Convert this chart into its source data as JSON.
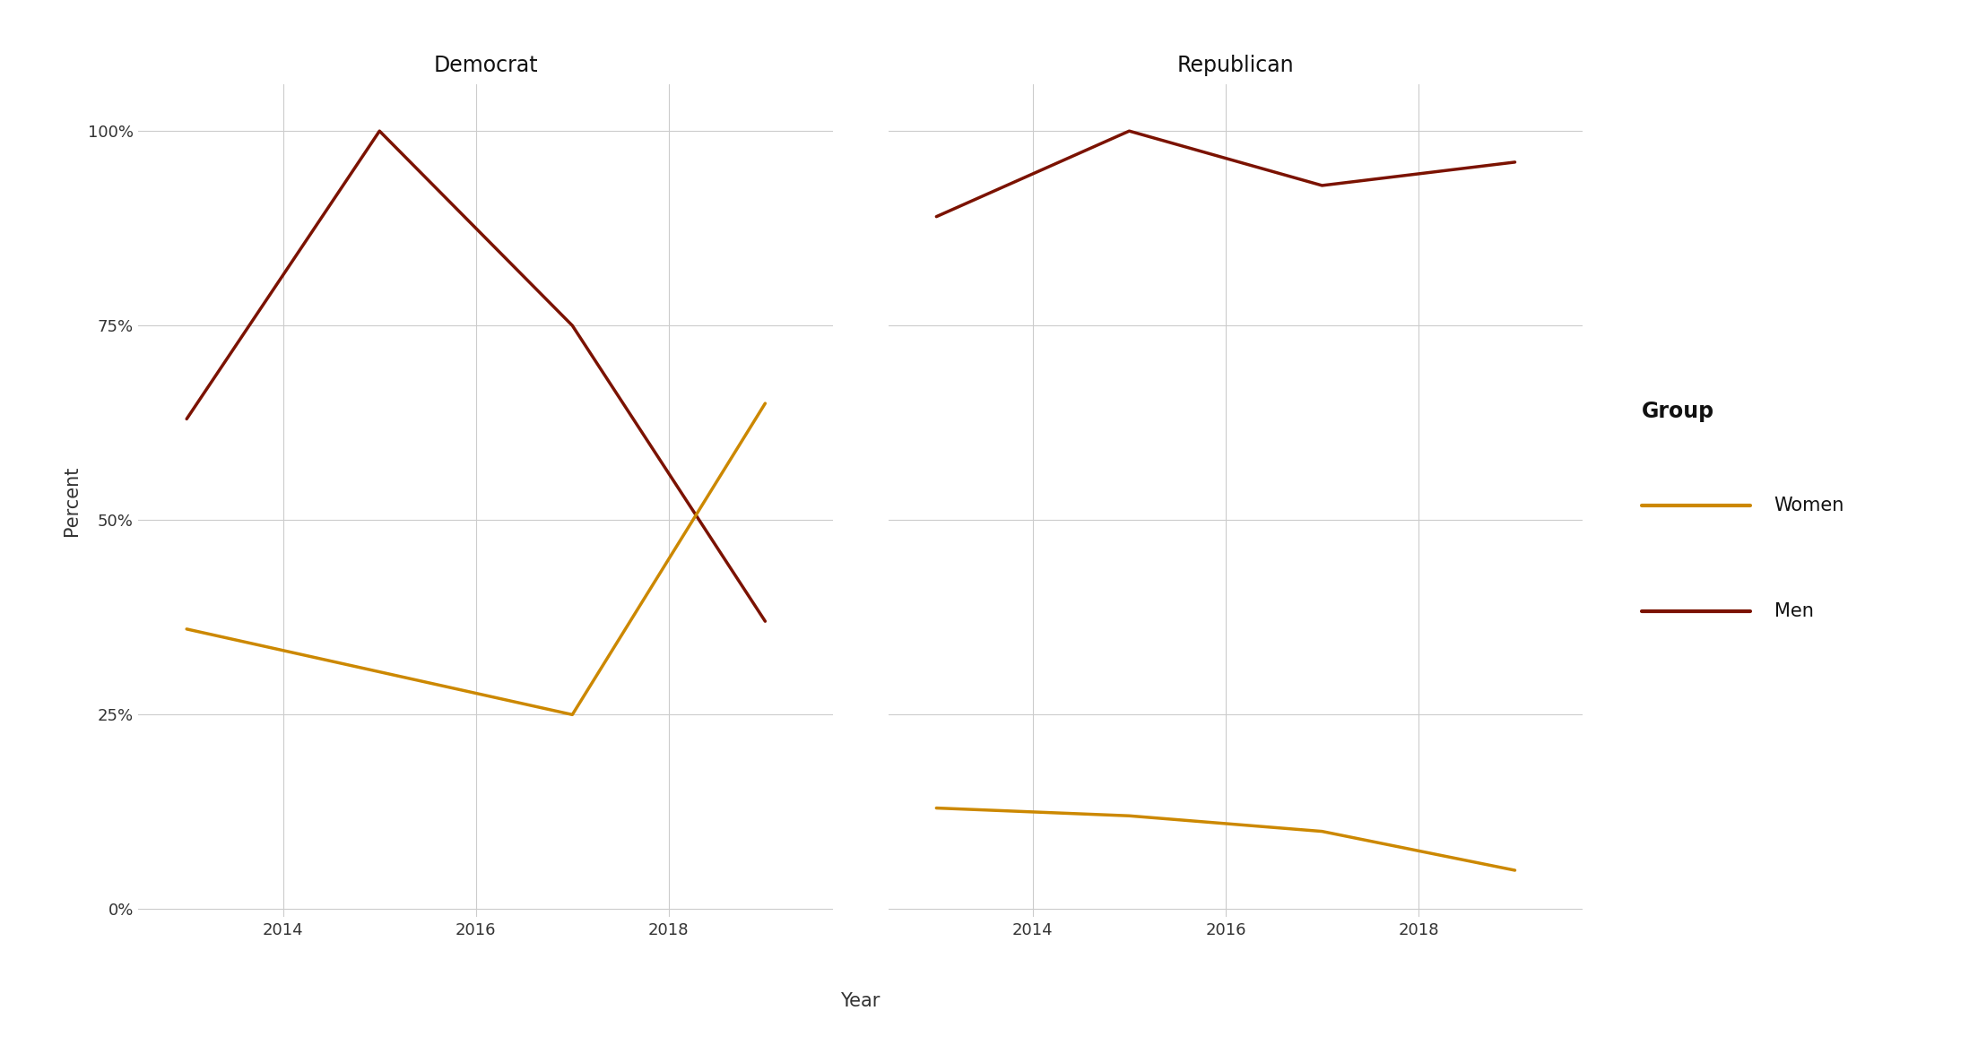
{
  "panels": [
    "Democrat",
    "Republican"
  ],
  "democrat": {
    "men": {
      "x": [
        2013,
        2015,
        2017,
        2019
      ],
      "y": [
        0.63,
        1.0,
        0.75,
        0.37
      ]
    },
    "women": {
      "x": [
        2013,
        2017,
        2019
      ],
      "y": [
        0.36,
        0.25,
        0.65
      ]
    }
  },
  "republican": {
    "men": {
      "x": [
        2013,
        2015,
        2017,
        2019
      ],
      "y": [
        0.89,
        1.0,
        0.93,
        0.96
      ]
    },
    "women": {
      "x": [
        2013,
        2015,
        2017,
        2019
      ],
      "y": [
        0.13,
        0.12,
        0.1,
        0.05
      ]
    }
  },
  "color_women": "#CC8800",
  "color_men": "#7B1200",
  "linewidth": 2.5,
  "ylabel": "Percent",
  "xlabel": "Year",
  "title_fontsize": 17,
  "label_fontsize": 15,
  "tick_fontsize": 13,
  "legend_title": "Group",
  "legend_title_fontsize": 17,
  "legend_text_fontsize": 15,
  "background_color": "#FFFFFF",
  "grid_color": "#CCCCCC",
  "yticks": [
    0.0,
    0.25,
    0.5,
    0.75,
    1.0
  ],
  "ytick_labels": [
    "0%",
    "25%",
    "50%",
    "75%",
    "100%"
  ],
  "xticks": [
    2014,
    2016,
    2018
  ],
  "xlim": [
    2012.5,
    2019.7
  ],
  "ylim": [
    -0.01,
    1.06
  ]
}
